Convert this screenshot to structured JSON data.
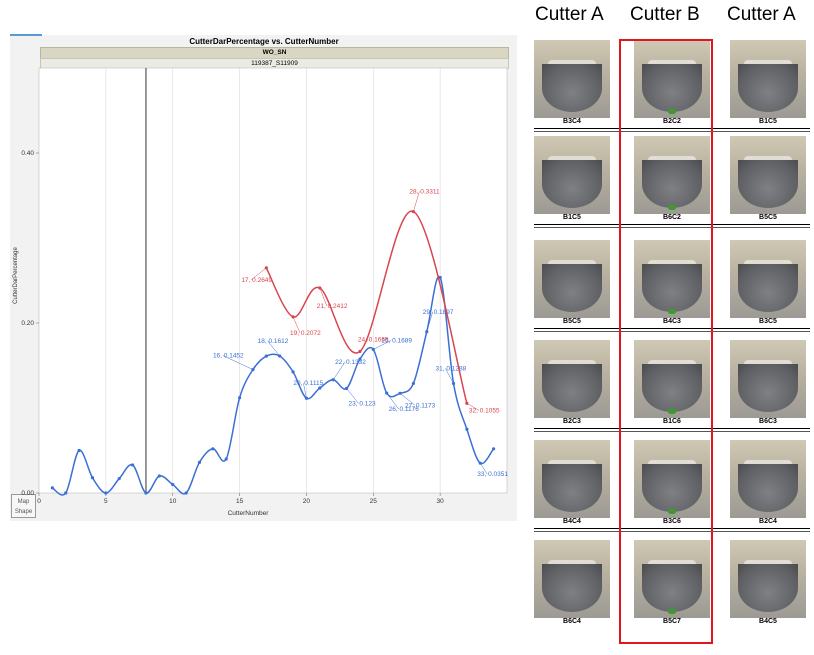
{
  "chart_data": {
    "type": "line",
    "title": "CutterDarPercentage vs. CutterNumber",
    "header_row1": "WO_SN",
    "header_row2": "119387_S11909",
    "xlabel": "CutterNumber",
    "ylabel": "CutterDarPercentage",
    "xlim": [
      0,
      35
    ],
    "ylim": [
      0,
      0.5
    ],
    "x_ticks": [
      "0",
      "5",
      "10",
      "15",
      "20",
      "25",
      "30"
    ],
    "y_ticks": [
      "0.00",
      "0.20",
      "0.40"
    ],
    "vertical_reference_line_x": 8,
    "map_shape_label_1": "Map",
    "map_shape_label_2": "Shape",
    "series": [
      {
        "color": "#3b6fd4",
        "x": [
          1,
          2,
          3,
          4,
          5,
          6,
          7,
          8,
          9,
          10,
          11,
          12,
          13,
          14,
          15,
          16,
          17,
          18,
          19,
          20,
          21,
          22,
          23,
          24,
          25,
          26,
          27,
          28,
          29,
          30,
          31,
          32,
          33,
          34
        ],
        "y": [
          0.006,
          0.0,
          0.05,
          0.018,
          0.0,
          0.017,
          0.033,
          0.0,
          0.02,
          0.01,
          0.0,
          0.036,
          0.052,
          0.04,
          0.112,
          0.1452,
          0.161,
          0.1612,
          0.1425,
          0.1115,
          0.1235,
          0.1332,
          0.123,
          0.1575,
          0.1689,
          0.1176,
          0.1173,
          0.1289,
          0.1897,
          0.2535,
          0.1288,
          0.075,
          0.0351,
          0.052
        ],
        "annotations": [
          {
            "x": 16,
            "y": 0.1452,
            "text": "16, 0.1452"
          },
          {
            "x": 18,
            "y": 0.1612,
            "text": "18, 0.1612"
          },
          {
            "x": 20,
            "y": 0.1115,
            "text": "20, 0.1115"
          },
          {
            "x": 22,
            "y": 0.1332,
            "text": "22, 0.1332"
          },
          {
            "x": 23,
            "y": 0.123,
            "text": "23, 0.123"
          },
          {
            "x": 25,
            "y": 0.1689,
            "text": "25, 0.1689"
          },
          {
            "x": 26,
            "y": 0.1176,
            "text": "26, 0.1176"
          },
          {
            "x": 27,
            "y": 0.1173,
            "text": "27, 0.1173"
          },
          {
            "x": 29,
            "y": 0.1897,
            "text": "29, 0.1897"
          },
          {
            "x": 31,
            "y": 0.1288,
            "text": "31, 0.1288"
          },
          {
            "x": 33,
            "y": 0.0351,
            "text": "33, 0.0351"
          }
        ]
      },
      {
        "color": "#d9454d",
        "x": [
          17,
          19,
          21,
          24,
          28,
          32
        ],
        "y": [
          0.2649,
          0.2072,
          0.2412,
          0.1665,
          0.3311,
          0.1055
        ],
        "annotations": [
          {
            "x": 17,
            "y": 0.2649,
            "text": "17, 0.2649"
          },
          {
            "x": 19,
            "y": 0.2072,
            "text": "19, 0.2072"
          },
          {
            "x": 21,
            "y": 0.2412,
            "text": "21, 0.2412"
          },
          {
            "x": 24,
            "y": 0.1665,
            "text": "24, 0.1665"
          },
          {
            "x": 28,
            "y": 0.3311,
            "text": "28, 0.3311"
          },
          {
            "x": 32,
            "y": 0.1055,
            "text": "32, 0.1055"
          }
        ]
      }
    ]
  },
  "column_headers": [
    "Cutter A",
    "Cutter B",
    "Cutter A"
  ],
  "photo_grid": [
    [
      "B3C4",
      "B2C2",
      "B1C5"
    ],
    [
      "B1C5",
      "B6C2",
      "B5C5"
    ],
    [
      "B5C5",
      "B4C3",
      "B3C5"
    ],
    [
      "B2C3",
      "B1C6",
      "B6C3"
    ],
    [
      "B4C4",
      "B3C6",
      "B2C4"
    ],
    [
      "B6C4",
      "B5C7",
      "B4C5"
    ]
  ],
  "highlight_color": "#e0161e"
}
